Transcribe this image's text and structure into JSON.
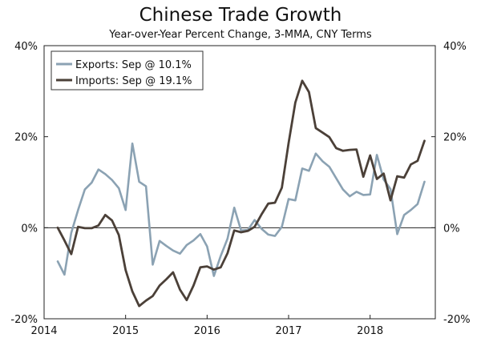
{
  "chart_data": {
    "type": "line",
    "title": "Chinese Trade Growth",
    "subtitle": "Year-over-Year Percent Change, 3-MMA, CNY Terms",
    "xlabel": "",
    "ylabel": "",
    "xlim": [
      2014.0,
      2018.8
    ],
    "ylim": [
      -20,
      40
    ],
    "y_ticks": [
      {
        "value": -20,
        "left": "-20%",
        "right": "-20%"
      },
      {
        "value": 0,
        "left": "0%",
        "right": "0%"
      },
      {
        "value": 20,
        "left": "20%",
        "right": "20%"
      },
      {
        "value": 40,
        "left": "40%",
        "right": "40%"
      }
    ],
    "x_ticks": [
      {
        "value": 2014,
        "label": "2014"
      },
      {
        "value": 2015,
        "label": "2015"
      },
      {
        "value": 2016,
        "label": "2016"
      },
      {
        "value": 2017,
        "label": "2017"
      },
      {
        "value": 2018,
        "label": "2018"
      }
    ],
    "legend_position": "top-left",
    "series": [
      {
        "name": "Exports: Sep @ 10.1%",
        "color": "#8ba2b3",
        "x": [
          2014.167,
          2014.25,
          2014.333,
          2014.417,
          2014.5,
          2014.583,
          2014.667,
          2014.75,
          2014.833,
          2014.917,
          2015.0,
          2015.083,
          2015.167,
          2015.25,
          2015.333,
          2015.417,
          2015.5,
          2015.583,
          2015.667,
          2015.75,
          2015.833,
          2015.917,
          2016.0,
          2016.083,
          2016.167,
          2016.25,
          2016.333,
          2016.417,
          2016.5,
          2016.583,
          2016.667,
          2016.75,
          2016.833,
          2016.917,
          2017.0,
          2017.083,
          2017.167,
          2017.25,
          2017.333,
          2017.417,
          2017.5,
          2017.583,
          2017.667,
          2017.75,
          2017.833,
          2017.917,
          2018.0,
          2018.083,
          2018.167,
          2018.25,
          2018.333,
          2018.417,
          2018.5,
          2018.583,
          2018.667
        ],
        "values": [
          -7.4,
          -10.3,
          -1.1,
          3.9,
          8.4,
          9.9,
          12.8,
          11.8,
          10.5,
          8.7,
          3.9,
          18.5,
          10.1,
          9.1,
          -8.1,
          -2.9,
          -4.0,
          -5.0,
          -5.7,
          -3.8,
          -2.8,
          -1.4,
          -4.1,
          -10.6,
          -6.2,
          -2.4,
          4.4,
          -0.6,
          -0.5,
          1.7,
          -0.2,
          -1.5,
          -1.8,
          0.2,
          6.3,
          6.0,
          13.0,
          12.5,
          16.3,
          14.6,
          13.4,
          10.9,
          8.4,
          6.9,
          7.9,
          7.2,
          7.3,
          16.0,
          10.6,
          8.5,
          -1.4,
          2.8,
          3.9,
          5.2,
          10.1
        ]
      },
      {
        "name": "Imports: Sep @ 19.1%",
        "color": "#4b4038",
        "x": [
          2014.167,
          2014.25,
          2014.333,
          2014.417,
          2014.5,
          2014.583,
          2014.667,
          2014.75,
          2014.833,
          2014.917,
          2015.0,
          2015.083,
          2015.167,
          2015.25,
          2015.333,
          2015.417,
          2015.5,
          2015.583,
          2015.667,
          2015.75,
          2015.833,
          2015.917,
          2016.0,
          2016.083,
          2016.167,
          2016.25,
          2016.333,
          2016.417,
          2016.5,
          2016.583,
          2016.667,
          2016.75,
          2016.833,
          2016.917,
          2017.0,
          2017.083,
          2017.167,
          2017.25,
          2017.333,
          2017.417,
          2017.5,
          2017.583,
          2017.667,
          2017.75,
          2017.833,
          2017.917,
          2018.0,
          2018.083,
          2018.167,
          2018.25,
          2018.333,
          2018.417,
          2018.5,
          2018.583,
          2018.667
        ],
        "values": [
          0.0,
          -2.8,
          -5.8,
          0.2,
          -0.1,
          -0.1,
          0.5,
          2.8,
          1.6,
          -1.6,
          -9.3,
          -14.0,
          -17.2,
          -16.0,
          -15.0,
          -12.7,
          -11.3,
          -9.8,
          -13.6,
          -15.9,
          -12.7,
          -8.7,
          -8.5,
          -9.2,
          -8.7,
          -5.6,
          -0.6,
          -1.0,
          -0.7,
          0.2,
          2.9,
          5.3,
          5.5,
          8.8,
          18.6,
          27.5,
          32.3,
          29.8,
          21.9,
          20.9,
          19.9,
          17.5,
          16.9,
          17.1,
          17.2,
          11.2,
          15.9,
          10.7,
          11.9,
          6.0,
          11.3,
          11.0,
          13.9,
          14.7,
          19.1
        ]
      }
    ]
  }
}
